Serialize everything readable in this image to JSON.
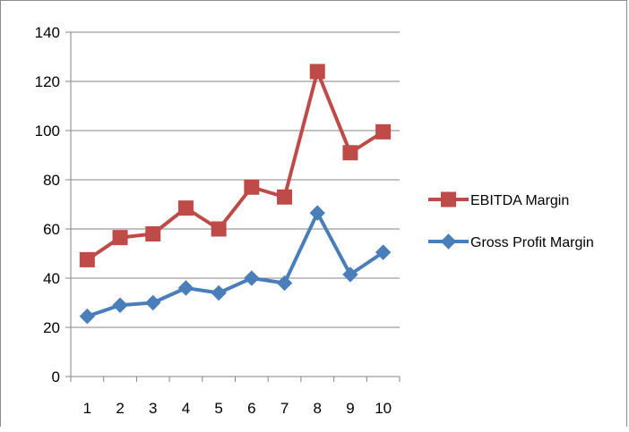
{
  "chart_data": {
    "type": "line",
    "title": "",
    "xlabel": "",
    "ylabel": "",
    "categories": [
      "1",
      "2",
      "3",
      "4",
      "5",
      "6",
      "7",
      "8",
      "9",
      "10"
    ],
    "ylim": [
      0,
      140
    ],
    "yticks": [
      0,
      20,
      40,
      60,
      80,
      100,
      120,
      140
    ],
    "grid": "horizontal",
    "legend_position": "right",
    "series": [
      {
        "name": "EBITDA Margin",
        "color": "#be4b48",
        "marker": "square",
        "values": [
          47.5,
          56.5,
          58,
          68.5,
          60,
          77,
          73,
          124,
          91,
          99.5
        ]
      },
      {
        "name": "Gross Profit Margin",
        "color": "#4a7ebb",
        "marker": "diamond",
        "values": [
          24.5,
          29,
          30,
          36,
          34,
          40,
          38,
          66.5,
          41.5,
          50.5
        ]
      }
    ]
  }
}
